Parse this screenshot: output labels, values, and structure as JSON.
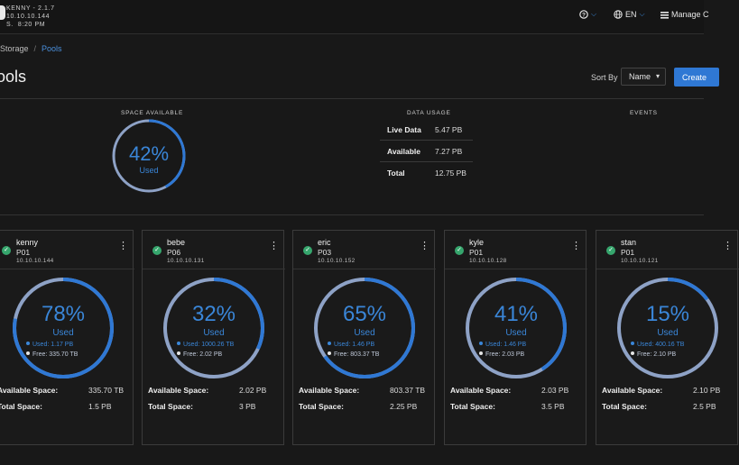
{
  "system": {
    "line1": "KENNY - 2.1.7",
    "line2": "10.10.10.144",
    "line3": "S.  8:20 PM"
  },
  "topbar": {
    "help_icon": "help-icon",
    "language_label": "EN",
    "manage_label": "Manage C"
  },
  "breadcrumb": {
    "storage": "Storage",
    "separator": "/",
    "pools": "Pools"
  },
  "page": {
    "title": "ools"
  },
  "sort": {
    "label": "Sort By",
    "value": "Name"
  },
  "create_label": "Create",
  "summary": {
    "space_available_header": "SPACE AVAILABLE",
    "space_available_percent": "42%",
    "space_available_fraction": 0.42,
    "space_available_sub": "Used",
    "data_usage_header": "DATA USAGE",
    "events_header": "EVENTS",
    "usage": [
      {
        "label": "Live Data",
        "value": "5.47 PB"
      },
      {
        "label": "Available",
        "value": "7.27 PB"
      },
      {
        "label": "Total",
        "value": "12.75 PB"
      }
    ]
  },
  "labels": {
    "available_space": "Available Space:",
    "total_space": "Total Space:",
    "used": "Used"
  },
  "pools": [
    {
      "name": "kenny",
      "pool": "P01",
      "ip": "10.10.10.144",
      "percent": "78%",
      "fraction": 0.78,
      "used": "Used: 1.17 PB",
      "free": "Free: 335.70 TB",
      "available": "335.70 TB",
      "total": "1.5 PB"
    },
    {
      "name": "bebe",
      "pool": "P06",
      "ip": "10.10.10.131",
      "percent": "32%",
      "fraction": 0.32,
      "used": "Used: 1000.26 TB",
      "free": "Free: 2.02 PB",
      "available": "2.02 PB",
      "total": "3 PB"
    },
    {
      "name": "eric",
      "pool": "P03",
      "ip": "10.10.10.152",
      "percent": "65%",
      "fraction": 0.65,
      "used": "Used: 1.46 PB",
      "free": "Free: 803.37 TB",
      "available": "803.37 TB",
      "total": "2.25 PB"
    },
    {
      "name": "kyle",
      "pool": "P01",
      "ip": "10.10.10.128",
      "percent": "41%",
      "fraction": 0.41,
      "used": "Used: 1.46 PB",
      "free": "Free: 2.03 PB",
      "available": "2.03 PB",
      "total": "3.5 PB"
    },
    {
      "name": "stan",
      "pool": "P01",
      "ip": "10.10.10.121",
      "percent": "15%",
      "fraction": 0.15,
      "used": "Used: 400.16 TB",
      "free": "Free: 2.10 PB",
      "available": "2.10 PB",
      "total": "2.5 PB"
    }
  ],
  "colors": {
    "used": "#2f78d4",
    "free": "#8ea2c6",
    "status_ok": "#36a66d"
  }
}
